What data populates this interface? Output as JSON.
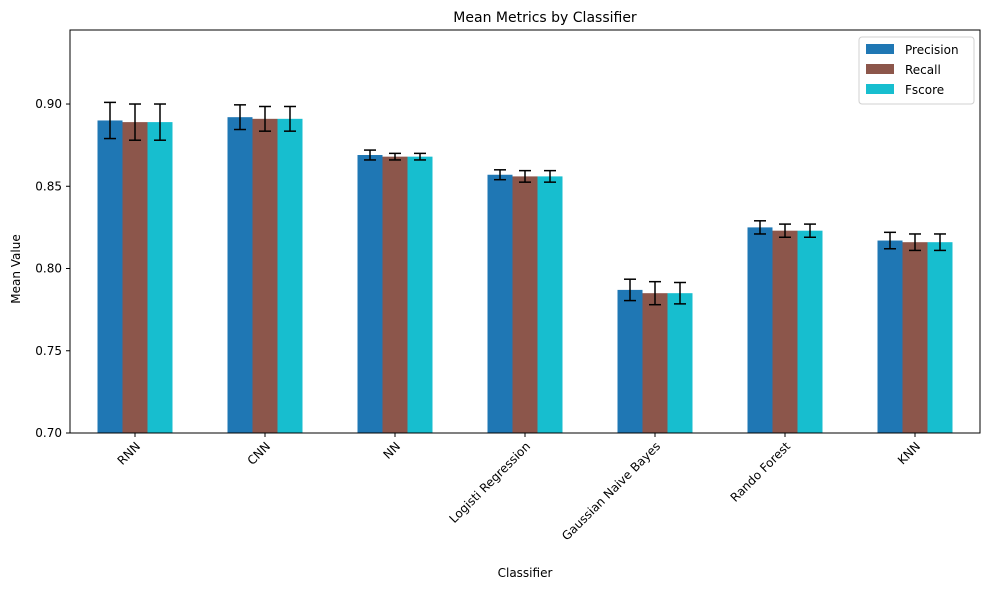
{
  "chart_data": {
    "type": "bar",
    "title": "Mean Metrics by Classifier",
    "xlabel": "Classifier",
    "ylabel": "Mean Value",
    "categories": [
      "RNN",
      "CNN",
      "NN",
      "Logisti Regression",
      "Gaussian Naive Bayes",
      "Rando Forest",
      "KNN"
    ],
    "series": [
      {
        "name": "Precision",
        "color": "#1f77b4",
        "values": [
          0.89,
          0.892,
          0.869,
          0.857,
          0.787,
          0.825,
          0.817
        ],
        "errors": [
          0.011,
          0.0075,
          0.003,
          0.003,
          0.0065,
          0.004,
          0.005
        ]
      },
      {
        "name": "Recall",
        "color": "#8c564b",
        "values": [
          0.889,
          0.891,
          0.868,
          0.856,
          0.785,
          0.823,
          0.816
        ],
        "errors": [
          0.011,
          0.0075,
          0.002,
          0.0035,
          0.007,
          0.004,
          0.005
        ]
      },
      {
        "name": "Fscore",
        "color": "#17becf",
        "values": [
          0.889,
          0.891,
          0.868,
          0.856,
          0.785,
          0.823,
          0.816
        ],
        "errors": [
          0.011,
          0.0075,
          0.002,
          0.0035,
          0.0065,
          0.004,
          0.005
        ]
      }
    ],
    "ylim": [
      0.7,
      0.945
    ],
    "yticks": [
      "0.70",
      "0.75",
      "0.80",
      "0.85",
      "0.90"
    ],
    "grid": false,
    "legend": "top-right"
  }
}
